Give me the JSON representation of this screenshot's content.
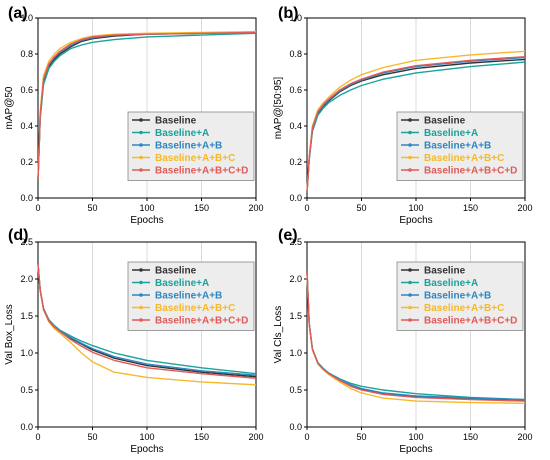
{
  "figure": {
    "background": "#ffffff",
    "grid_color": "#cccccc",
    "legend_bg": "#ededed",
    "legend_border": "#888888"
  },
  "series_styles": [
    {
      "name": "Baseline",
      "color": "#333333"
    },
    {
      "name": "Baseline+A",
      "color": "#1aa39a"
    },
    {
      "name": "Baseline+A+B",
      "color": "#2e86c1"
    },
    {
      "name": "Baseline+A+B+C",
      "color": "#f6b92b"
    },
    {
      "name": "Baseline+A+B+C+D",
      "color": "#e05a5a"
    }
  ],
  "chart_data": [
    {
      "panel": "(a)",
      "type": "line",
      "xlabel": "Epochs",
      "ylabel": "mAP@50",
      "xlim": [
        0,
        200
      ],
      "ylim": [
        0,
        1.0
      ],
      "xticks": [
        0,
        50,
        100,
        150,
        200
      ],
      "yticks": [
        0.0,
        0.2,
        0.4,
        0.6,
        0.8,
        1.0
      ],
      "grid": true,
      "legend_position": "lower-right",
      "x": [
        0,
        2,
        5,
        10,
        15,
        20,
        30,
        40,
        50,
        70,
        100,
        150,
        200
      ],
      "series": [
        {
          "name": "Baseline",
          "values": [
            0.1,
            0.45,
            0.65,
            0.73,
            0.77,
            0.8,
            0.84,
            0.87,
            0.885,
            0.9,
            0.91,
            0.915,
            0.92
          ]
        },
        {
          "name": "Baseline+A",
          "values": [
            0.1,
            0.44,
            0.63,
            0.72,
            0.76,
            0.79,
            0.83,
            0.85,
            0.865,
            0.88,
            0.895,
            0.905,
            0.915
          ]
        },
        {
          "name": "Baseline+A+B",
          "values": [
            0.1,
            0.46,
            0.66,
            0.74,
            0.78,
            0.81,
            0.85,
            0.875,
            0.89,
            0.905,
            0.91,
            0.915,
            0.92
          ]
        },
        {
          "name": "Baseline+A+B+C",
          "values": [
            0.1,
            0.48,
            0.68,
            0.76,
            0.8,
            0.83,
            0.865,
            0.885,
            0.9,
            0.91,
            0.915,
            0.92,
            0.925
          ]
        },
        {
          "name": "Baseline+A+B+C+D",
          "values": [
            0.1,
            0.46,
            0.66,
            0.745,
            0.785,
            0.815,
            0.855,
            0.88,
            0.895,
            0.905,
            0.91,
            0.915,
            0.92
          ]
        }
      ]
    },
    {
      "panel": "(b)",
      "type": "line",
      "xlabel": "Epochs",
      "ylabel": "mAP@[50:95]",
      "xlim": [
        0,
        200
      ],
      "ylim": [
        0,
        1.0
      ],
      "xticks": [
        0,
        50,
        100,
        150,
        200
      ],
      "yticks": [
        0.0,
        0.2,
        0.4,
        0.6,
        0.8,
        1.0
      ],
      "grid": true,
      "legend_position": "lower-right",
      "x": [
        0,
        2,
        5,
        10,
        15,
        20,
        30,
        40,
        50,
        70,
        100,
        150,
        200
      ],
      "series": [
        {
          "name": "Baseline",
          "values": [
            0.03,
            0.22,
            0.38,
            0.47,
            0.51,
            0.54,
            0.59,
            0.625,
            0.65,
            0.685,
            0.72,
            0.75,
            0.77
          ]
        },
        {
          "name": "Baseline+A",
          "values": [
            0.03,
            0.21,
            0.37,
            0.46,
            0.5,
            0.53,
            0.57,
            0.6,
            0.625,
            0.66,
            0.695,
            0.73,
            0.755
          ]
        },
        {
          "name": "Baseline+A+B",
          "values": [
            0.03,
            0.22,
            0.385,
            0.475,
            0.515,
            0.545,
            0.595,
            0.63,
            0.655,
            0.695,
            0.73,
            0.76,
            0.78
          ]
        },
        {
          "name": "Baseline+A+B+C",
          "values": [
            0.03,
            0.23,
            0.4,
            0.49,
            0.53,
            0.56,
            0.615,
            0.655,
            0.685,
            0.725,
            0.765,
            0.795,
            0.815
          ]
        },
        {
          "name": "Baseline+A+B+C+D",
          "values": [
            0.03,
            0.22,
            0.39,
            0.48,
            0.52,
            0.55,
            0.6,
            0.635,
            0.66,
            0.7,
            0.735,
            0.765,
            0.785
          ]
        }
      ]
    },
    {
      "panel": "(d)",
      "type": "line",
      "xlabel": "Epochs",
      "ylabel": "Val Box_Loss",
      "xlim": [
        0,
        200
      ],
      "ylim": [
        0,
        2.5
      ],
      "xticks": [
        0,
        50,
        100,
        150,
        200
      ],
      "yticks": [
        0.0,
        0.5,
        1.0,
        1.5,
        2.0,
        2.5
      ],
      "grid": true,
      "legend_position": "upper-right",
      "x": [
        0,
        2,
        5,
        10,
        15,
        20,
        30,
        40,
        50,
        70,
        100,
        150,
        200
      ],
      "series": [
        {
          "name": "Baseline",
          "values": [
            2.2,
            1.85,
            1.6,
            1.44,
            1.36,
            1.3,
            1.2,
            1.12,
            1.04,
            0.93,
            0.83,
            0.74,
            0.68
          ]
        },
        {
          "name": "Baseline+A",
          "values": [
            2.2,
            1.85,
            1.6,
            1.45,
            1.37,
            1.31,
            1.23,
            1.16,
            1.1,
            1.0,
            0.9,
            0.8,
            0.72
          ]
        },
        {
          "name": "Baseline+A+B",
          "values": [
            2.2,
            1.85,
            1.6,
            1.44,
            1.36,
            1.3,
            1.21,
            1.13,
            1.06,
            0.95,
            0.85,
            0.76,
            0.7
          ]
        },
        {
          "name": "Baseline+A+B+C",
          "values": [
            2.2,
            1.84,
            1.58,
            1.42,
            1.33,
            1.27,
            1.14,
            1.0,
            0.88,
            0.74,
            0.67,
            0.61,
            0.57
          ]
        },
        {
          "name": "Baseline+A+B+C+D",
          "values": [
            2.2,
            1.85,
            1.59,
            1.43,
            1.35,
            1.29,
            1.18,
            1.09,
            1.01,
            0.9,
            0.8,
            0.72,
            0.66
          ]
        }
      ]
    },
    {
      "panel": "(e)",
      "type": "line",
      "xlabel": "Epochs",
      "ylabel": "Val Cls_Loss",
      "xlim": [
        0,
        200
      ],
      "ylim": [
        0,
        2.5
      ],
      "xticks": [
        0,
        50,
        100,
        150,
        200
      ],
      "yticks": [
        0.0,
        0.5,
        1.0,
        1.5,
        2.0,
        2.5
      ],
      "grid": true,
      "legend_position": "upper-right",
      "x": [
        0,
        2,
        5,
        10,
        15,
        20,
        30,
        40,
        50,
        70,
        100,
        150,
        200
      ],
      "series": [
        {
          "name": "Baseline",
          "values": [
            2.1,
            1.4,
            1.05,
            0.86,
            0.78,
            0.72,
            0.63,
            0.56,
            0.51,
            0.45,
            0.41,
            0.38,
            0.36
          ]
        },
        {
          "name": "Baseline+A",
          "values": [
            2.1,
            1.4,
            1.06,
            0.87,
            0.79,
            0.73,
            0.65,
            0.59,
            0.55,
            0.5,
            0.45,
            0.4,
            0.37
          ]
        },
        {
          "name": "Baseline+A+B",
          "values": [
            2.1,
            1.4,
            1.05,
            0.86,
            0.78,
            0.72,
            0.64,
            0.57,
            0.52,
            0.46,
            0.42,
            0.39,
            0.37
          ]
        },
        {
          "name": "Baseline+A+B+C",
          "values": [
            2.1,
            1.39,
            1.04,
            0.85,
            0.77,
            0.71,
            0.61,
            0.52,
            0.46,
            0.39,
            0.35,
            0.33,
            0.32
          ]
        },
        {
          "name": "Baseline+A+B+C+D",
          "values": [
            2.1,
            1.4,
            1.05,
            0.86,
            0.78,
            0.72,
            0.63,
            0.55,
            0.5,
            0.44,
            0.4,
            0.37,
            0.35
          ]
        }
      ]
    }
  ]
}
